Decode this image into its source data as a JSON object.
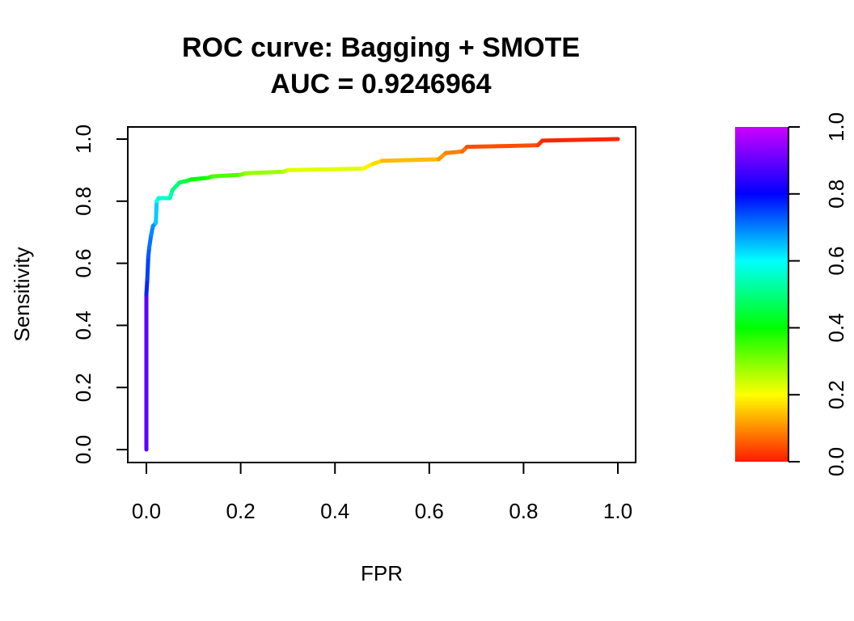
{
  "chart_data": {
    "type": "line",
    "title": "ROC curve: Bagging + SMOTE",
    "subtitle": "AUC = 0.9246964",
    "xlabel": "FPR",
    "ylabel": "Sensitivity",
    "xlim": [
      0,
      1
    ],
    "ylim": [
      0,
      1
    ],
    "x_ticks": [
      "0.0",
      "0.2",
      "0.4",
      "0.6",
      "0.8",
      "1.0"
    ],
    "y_ticks": [
      "0.0",
      "0.2",
      "0.4",
      "0.6",
      "0.8",
      "1.0"
    ],
    "grid": false,
    "series": [
      {
        "x": [
          0.0,
          0.0,
          0.002,
          0.004,
          0.006,
          0.01,
          0.014,
          0.02,
          0.022,
          0.026,
          0.05,
          0.055,
          0.07,
          0.085,
          0.095,
          0.13,
          0.14,
          0.2,
          0.21,
          0.29,
          0.3,
          0.46,
          0.48,
          0.5,
          0.62,
          0.635,
          0.67,
          0.68,
          0.83,
          0.84,
          1.0
        ],
        "y": [
          0.0,
          0.5,
          0.55,
          0.62,
          0.65,
          0.69,
          0.72,
          0.73,
          0.8,
          0.81,
          0.81,
          0.835,
          0.86,
          0.865,
          0.87,
          0.875,
          0.88,
          0.885,
          0.89,
          0.895,
          0.9,
          0.905,
          0.92,
          0.93,
          0.935,
          0.955,
          0.96,
          0.975,
          0.98,
          0.995,
          1.0
        ],
        "threshold": [
          1.0,
          0.78,
          0.76,
          0.74,
          0.72,
          0.7,
          0.69,
          0.68,
          0.6,
          0.58,
          0.55,
          0.52,
          0.48,
          0.45,
          0.42,
          0.38,
          0.36,
          0.32,
          0.3,
          0.26,
          0.25,
          0.2,
          0.18,
          0.16,
          0.12,
          0.1,
          0.08,
          0.06,
          0.03,
          0.02,
          0.0
        ]
      }
    ],
    "color_scale": {
      "type": "rainbow",
      "range": [
        0,
        1
      ],
      "ticks": [
        "0.0",
        "0.2",
        "0.4",
        "0.6",
        "0.8",
        "1.0"
      ],
      "stops": [
        {
          "v": 0.0,
          "color": "#ff1a00"
        },
        {
          "v": 0.2,
          "color": "#ffff00"
        },
        {
          "v": 0.4,
          "color": "#00ff00"
        },
        {
          "v": 0.6,
          "color": "#00ffff"
        },
        {
          "v": 0.8,
          "color": "#0000ff"
        },
        {
          "v": 1.0,
          "color": "#cc00ff"
        }
      ]
    }
  }
}
